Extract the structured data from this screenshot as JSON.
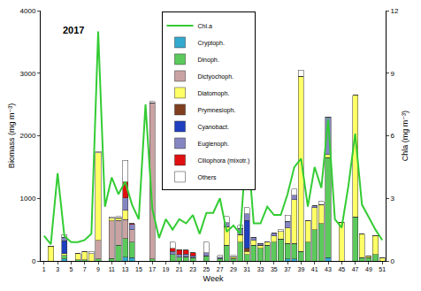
{
  "chart_data": {
    "type": "bar",
    "title": "2017",
    "x_label": "Week",
    "y_label": "Biomass (mg m⁻³)",
    "y2_label": "Chla (mg m⁻³)",
    "stacked": true,
    "legend": "top",
    "categories": [
      1,
      null,
      3,
      null,
      5,
      null,
      7,
      null,
      9,
      null,
      11,
      null,
      13,
      null,
      15,
      null,
      17,
      null,
      19,
      null,
      21,
      null,
      23,
      null,
      25,
      null,
      27,
      null,
      29,
      null,
      31,
      null,
      33,
      null,
      35,
      null,
      37,
      null,
      39,
      null,
      41,
      null,
      43,
      null,
      45,
      null,
      47,
      null,
      49,
      null,
      51
    ],
    "ylim": [
      0,
      4000
    ],
    "yticks": [
      0,
      1000,
      2000,
      3000,
      4000
    ],
    "y2lim": [
      0,
      12
    ],
    "y2ticks": [
      0,
      3,
      6,
      9,
      12
    ],
    "series": [
      {
        "name": "Cryptoph.",
        "color": "#33a9cf",
        "values": [
          0,
          0,
          0,
          30,
          0,
          0,
          0,
          0,
          0,
          0,
          0,
          0,
          60,
          50,
          0,
          0,
          0,
          0,
          0,
          0,
          0,
          0,
          0,
          0,
          0,
          0,
          0,
          0,
          0,
          0,
          0,
          0,
          0,
          0,
          0,
          0,
          30,
          30,
          0,
          0,
          0,
          0,
          50,
          0,
          0,
          0,
          0,
          0,
          0,
          0,
          0
        ]
      },
      {
        "name": "Dinoph.",
        "color": "#5cc95c",
        "values": [
          0,
          0,
          0,
          60,
          0,
          20,
          20,
          0,
          30,
          0,
          40,
          250,
          300,
          250,
          0,
          0,
          30,
          0,
          0,
          100,
          60,
          70,
          50,
          0,
          80,
          0,
          40,
          250,
          40,
          300,
          100,
          250,
          200,
          250,
          300,
          350,
          250,
          250,
          150,
          300,
          500,
          600,
          1600,
          0,
          0,
          0,
          700,
          50,
          50,
          100,
          0
        ]
      },
      {
        "name": "Dictyochoph.",
        "color": "#c9a3a3",
        "values": [
          0,
          0,
          0,
          0,
          0,
          0,
          0,
          0,
          300,
          0,
          600,
          400,
          300,
          200,
          0,
          0,
          2500,
          0,
          0,
          0,
          0,
          0,
          0,
          0,
          0,
          0,
          0,
          0,
          0,
          0,
          0,
          0,
          0,
          0,
          0,
          0,
          0,
          0,
          0,
          0,
          0,
          0,
          0,
          0,
          0,
          0,
          0,
          0,
          0,
          0,
          0
        ]
      },
      {
        "name": "Diatomoph.",
        "color": "#ffff66",
        "values": [
          0,
          230,
          0,
          30,
          0,
          100,
          130,
          120,
          1400,
          0,
          40,
          40,
          150,
          0,
          0,
          0,
          0,
          0,
          0,
          0,
          0,
          0,
          0,
          0,
          0,
          0,
          0,
          300,
          30,
          120,
          50,
          80,
          50,
          50,
          100,
          120,
          250,
          700,
          2800,
          350,
          350,
          300,
          50,
          0,
          620,
          0,
          1950,
          380,
          30,
          300,
          50
        ]
      },
      {
        "name": "Prymnesioph.",
        "color": "#7f3f1f",
        "values": [
          0,
          0,
          0,
          0,
          0,
          0,
          0,
          0,
          0,
          0,
          0,
          0,
          0,
          0,
          0,
          0,
          0,
          0,
          0,
          0,
          0,
          0,
          0,
          0,
          0,
          0,
          0,
          0,
          0,
          0,
          50,
          0,
          0,
          0,
          0,
          0,
          0,
          0,
          0,
          0,
          0,
          0,
          0,
          0,
          0,
          0,
          0,
          0,
          0,
          0,
          0
        ]
      },
      {
        "name": "Cyanobact.",
        "color": "#1f3fbf",
        "values": [
          0,
          0,
          0,
          200,
          0,
          0,
          0,
          0,
          0,
          0,
          0,
          0,
          0,
          0,
          0,
          0,
          0,
          0,
          0,
          0,
          0,
          0,
          0,
          0,
          0,
          0,
          0,
          0,
          0,
          0,
          450,
          0,
          0,
          0,
          0,
          0,
          0,
          0,
          0,
          0,
          0,
          0,
          0,
          0,
          0,
          0,
          0,
          0,
          0,
          0,
          0
        ]
      },
      {
        "name": "Euglenoph.",
        "color": "#8585c2",
        "values": [
          0,
          0,
          0,
          60,
          0,
          0,
          0,
          0,
          0,
          0,
          0,
          0,
          200,
          80,
          0,
          0,
          0,
          0,
          0,
          50,
          40,
          40,
          30,
          0,
          50,
          0,
          20,
          60,
          0,
          100,
          100,
          50,
          30,
          0,
          40,
          0,
          100,
          70,
          0,
          0,
          30,
          0,
          600,
          0,
          0,
          0,
          0,
          0,
          0,
          0,
          0
        ]
      },
      {
        "name": "Ciliophora (mixotr.)",
        "color": "#e01010",
        "values": [
          0,
          0,
          0,
          0,
          0,
          0,
          0,
          0,
          0,
          0,
          0,
          0,
          250,
          20,
          0,
          0,
          0,
          0,
          0,
          50,
          80,
          60,
          50,
          0,
          0,
          0,
          0,
          0,
          0,
          0,
          0,
          0,
          0,
          0,
          0,
          0,
          0,
          0,
          0,
          0,
          0,
          0,
          0,
          0,
          0,
          0,
          0,
          0,
          0,
          0,
          0
        ]
      },
      {
        "name": "Others",
        "color": "#ffffff",
        "values": [
          0,
          0,
          0,
          40,
          0,
          0,
          0,
          30,
          20,
          0,
          20,
          20,
          350,
          0,
          0,
          0,
          20,
          0,
          0,
          100,
          0,
          0,
          0,
          0,
          170,
          0,
          30,
          100,
          20,
          50,
          100,
          0,
          0,
          0,
          0,
          30,
          100,
          100,
          100,
          0,
          0,
          50,
          0,
          0,
          0,
          0,
          0,
          0,
          0,
          0,
          0
        ]
      },
      {
        "name": "Chl.a",
        "type": "line",
        "axis": "y2",
        "color": "#33cc33",
        "values": [
          1.2,
          0.8,
          4.2,
          1.2,
          0.9,
          0.9,
          1.0,
          1.3,
          11,
          2.6,
          4.0,
          3.2,
          3.8,
          2.7,
          2.0,
          7.5,
          2.5,
          1.1,
          2.0,
          1.5,
          2.0,
          1.8,
          2.2,
          1.3,
          2.3,
          2.3,
          3.0,
          1.4,
          1.7,
          1.3,
          5.9,
          1.8,
          1.8,
          2.6,
          2.2,
          2.2,
          3.2,
          4.5,
          4.9,
          2.6,
          4.5,
          3.5,
          6.8,
          2.0,
          1.6,
          3.6,
          6.1,
          2.7,
          2.1,
          1.5,
          1.0
        ]
      }
    ]
  }
}
